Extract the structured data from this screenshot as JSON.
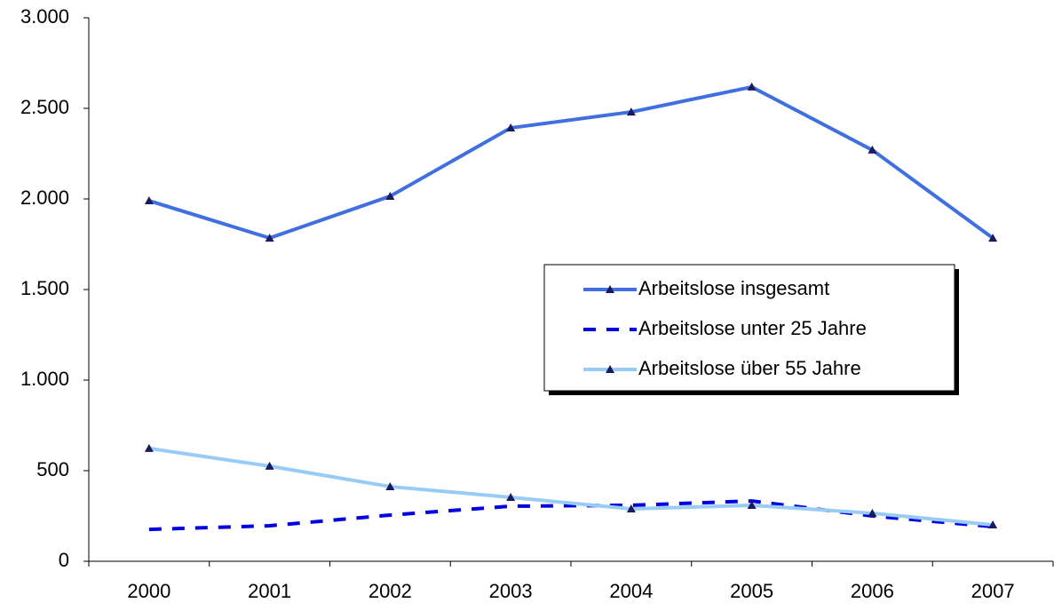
{
  "chart_data": {
    "type": "line",
    "categories": [
      "2000",
      "2001",
      "2002",
      "2003",
      "2004",
      "2005",
      "2006",
      "2007"
    ],
    "series": [
      {
        "name": "Arbeitslose insgesamt",
        "color": "#3f6fe0",
        "dash": false,
        "marker": "triangle",
        "values": [
          1990,
          1784,
          2015,
          2392,
          2480,
          2618,
          2270,
          1784
        ]
      },
      {
        "name": "Arbeitslose unter 25 Jahre",
        "color": "#0000e0",
        "dash": true,
        "marker": null,
        "values": [
          176,
          196,
          255,
          304,
          309,
          333,
          250,
          191
        ]
      },
      {
        "name": "Arbeitslose über 55 Jahre",
        "color": "#99ccf5",
        "dash": false,
        "marker": "triangle",
        "values": [
          623,
          525,
          412,
          353,
          289,
          309,
          265,
          201
        ]
      }
    ],
    "ylim": [
      0,
      3000
    ],
    "yticks": [
      0,
      500,
      {
        "value": 1000,
        "label": "1.000"
      },
      {
        "value": 1500,
        "label": "1.500"
      },
      {
        "value": 2000,
        "label": "2.000"
      },
      {
        "value": 2500,
        "label": "2.500"
      },
      {
        "value": 3000,
        "label": "3.000"
      }
    ],
    "grid": false,
    "legend_position": "center-right"
  }
}
